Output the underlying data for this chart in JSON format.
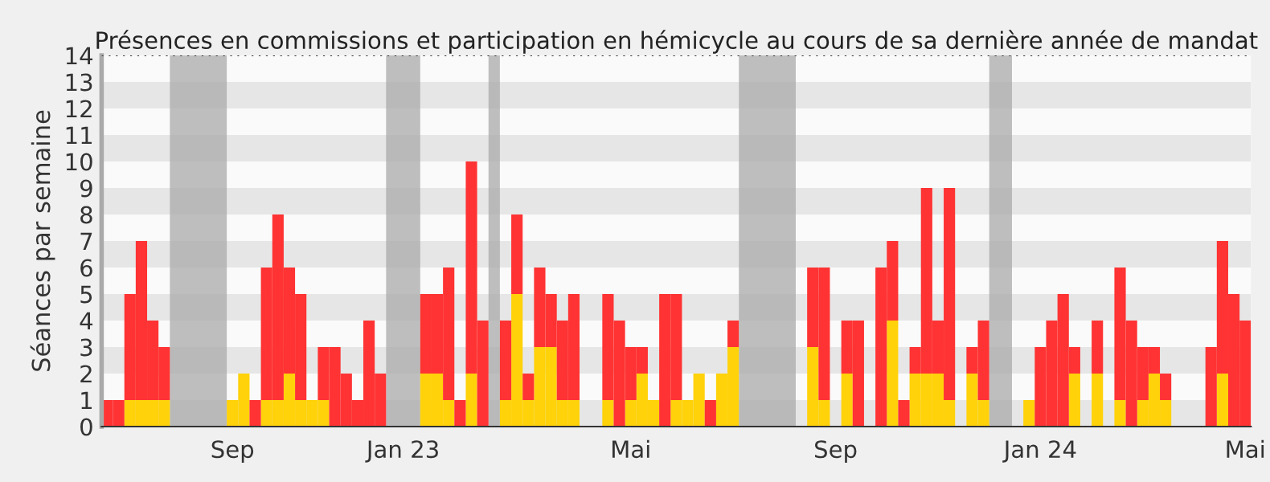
{
  "chart_data": {
    "type": "bar",
    "stacked": true,
    "title": "Présences en commissions et participation en hémicycle au cours de sa dernière année de mandat",
    "ylabel": "Séances par semaine",
    "categories": [
      null,
      null,
      null,
      null,
      null,
      null,
      null,
      null,
      null,
      null,
      null,
      "Sep",
      null,
      null,
      null,
      null,
      null,
      null,
      null,
      null,
      null,
      null,
      null,
      null,
      null,
      null,
      "Jan 23",
      null,
      null,
      null,
      null,
      null,
      null,
      null,
      null,
      null,
      null,
      null,
      null,
      null,
      null,
      null,
      null,
      null,
      null,
      null,
      "Mai",
      null,
      null,
      null,
      null,
      null,
      null,
      null,
      null,
      null,
      null,
      null,
      null,
      null,
      null,
      null,
      null,
      null,
      "Sep",
      null,
      null,
      null,
      null,
      null,
      null,
      null,
      null,
      null,
      null,
      null,
      null,
      null,
      null,
      null,
      null,
      null,
      "Jan 24",
      null,
      null,
      null,
      null,
      null,
      null,
      null,
      null,
      null,
      null,
      null,
      null,
      null,
      null,
      null,
      null,
      null,
      "Mai"
    ],
    "series": [
      {
        "color": "#ffd20a",
        "values": [
          0,
          0,
          1,
          1,
          1,
          1,
          0,
          0,
          0,
          0,
          0,
          1,
          2,
          0,
          1,
          1,
          2,
          1,
          1,
          1,
          0,
          0,
          0,
          0,
          0,
          0,
          0,
          0,
          2,
          2,
          1,
          0,
          2,
          0,
          0,
          1,
          5,
          1,
          3,
          3,
          1,
          1,
          0,
          0,
          1,
          0,
          1,
          2,
          1,
          0,
          1,
          1,
          2,
          0,
          2,
          3,
          0,
          0,
          0,
          0,
          0,
          0,
          3,
          1,
          0,
          2,
          0,
          0,
          0,
          4,
          0,
          2,
          2,
          2,
          1,
          0,
          2,
          1,
          0,
          0,
          0,
          1,
          0,
          0,
          0,
          2,
          0,
          2,
          0,
          1,
          0,
          1,
          2,
          1,
          0,
          0,
          0,
          0,
          2,
          0,
          0
        ]
      },
      {
        "color": "#ff3333",
        "values": [
          1,
          1,
          4,
          6,
          3,
          2,
          0,
          0,
          0,
          0,
          0,
          0,
          0,
          1,
          5,
          7,
          4,
          4,
          0,
          2,
          3,
          2,
          1,
          4,
          2,
          0,
          0,
          0,
          3,
          3,
          5,
          1,
          8,
          4,
          0,
          3,
          3,
          1,
          3,
          2,
          3,
          4,
          0,
          0,
          4,
          4,
          2,
          1,
          0,
          5,
          4,
          0,
          0,
          1,
          0,
          1,
          0,
          0,
          0,
          0,
          0,
          0,
          3,
          5,
          0,
          2,
          4,
          0,
          6,
          3,
          1,
          1,
          7,
          2,
          8,
          0,
          1,
          3,
          0,
          0,
          0,
          0,
          3,
          4,
          5,
          1,
          0,
          2,
          0,
          5,
          4,
          2,
          1,
          1,
          0,
          0,
          0,
          3,
          5,
          5,
          4
        ]
      }
    ],
    "ylim": [
      0,
      14
    ],
    "yticks": [
      0,
      1,
      2,
      3,
      4,
      5,
      6,
      7,
      8,
      9,
      10,
      11,
      12,
      13,
      14
    ]
  }
}
